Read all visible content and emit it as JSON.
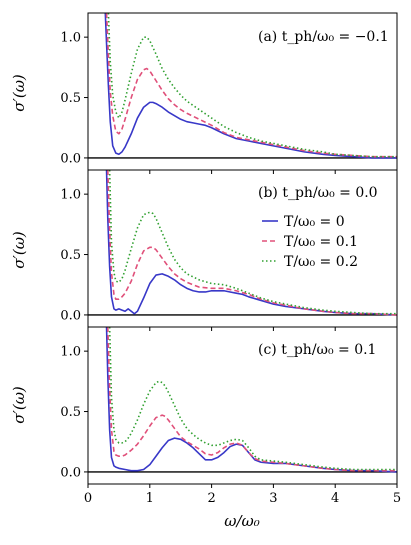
{
  "chart_data": {
    "type": "line",
    "xlabel": "ω/ω₀",
    "ylabel": "σ′(ω)",
    "xlim": [
      0,
      5
    ],
    "ylim": [
      -0.1,
      1.2
    ],
    "x_ticks": [
      0,
      1,
      2,
      3,
      4,
      5
    ],
    "y_ticks": [
      0.0,
      0.5,
      1.0
    ],
    "x_tick_labels": [
      "0",
      "1",
      "2",
      "3",
      "4",
      "5"
    ],
    "y_tick_labels": [
      "0.0",
      "0.5",
      "1.0"
    ],
    "legend": {
      "placement": "right, middle panel",
      "entries": [
        {
          "label": "T/ω₀ = 0",
          "color": "#3838c8",
          "style": "solid"
        },
        {
          "label": "T/ω₀ = 0.1",
          "color": "#e0507a",
          "style": "dashed"
        },
        {
          "label": "T/ω₀ = 0.2",
          "color": "#30a030",
          "style": "dotted"
        }
      ]
    },
    "panels": [
      {
        "label": "(a) t_ph/ω₀ = −0.1",
        "series": [
          {
            "name": "T/ω₀ = 0",
            "x": [
              0.28,
              0.3,
              0.33,
              0.36,
              0.4,
              0.45,
              0.5,
              0.55,
              0.6,
              0.7,
              0.8,
              0.9,
              1.0,
              1.05,
              1.1,
              1.2,
              1.3,
              1.4,
              1.5,
              1.6,
              1.7,
              1.8,
              1.9,
              2.0,
              2.2,
              2.4,
              2.6,
              2.8,
              3.0,
              3.2,
              3.5,
              3.8,
              4.0,
              4.3,
              4.6,
              5.0
            ],
            "y": [
              1.2,
              0.95,
              0.6,
              0.3,
              0.1,
              0.04,
              0.03,
              0.05,
              0.09,
              0.2,
              0.33,
              0.42,
              0.46,
              0.46,
              0.45,
              0.42,
              0.38,
              0.35,
              0.32,
              0.3,
              0.29,
              0.28,
              0.27,
              0.25,
              0.2,
              0.16,
              0.14,
              0.12,
              0.1,
              0.08,
              0.05,
              0.03,
              0.02,
              0.01,
              0.0,
              0.0
            ]
          },
          {
            "name": "T/ω₀ = 0.1",
            "x": [
              0.3,
              0.33,
              0.36,
              0.4,
              0.45,
              0.5,
              0.55,
              0.6,
              0.7,
              0.8,
              0.9,
              0.95,
              1.0,
              1.1,
              1.2,
              1.3,
              1.4,
              1.5,
              1.6,
              1.8,
              2.0,
              2.2,
              2.4,
              2.6,
              2.8,
              3.0,
              3.2,
              3.5,
              3.8,
              4.0,
              4.3,
              4.6,
              5.0
            ],
            "y": [
              1.2,
              0.85,
              0.55,
              0.35,
              0.22,
              0.2,
              0.24,
              0.32,
              0.5,
              0.65,
              0.73,
              0.74,
              0.72,
              0.64,
              0.56,
              0.49,
              0.44,
              0.4,
              0.37,
              0.32,
              0.27,
              0.21,
              0.17,
              0.15,
              0.13,
              0.11,
              0.09,
              0.06,
              0.04,
              0.03,
              0.02,
              0.01,
              0.01
            ]
          },
          {
            "name": "T/ω₀ = 0.2",
            "x": [
              0.33,
              0.36,
              0.4,
              0.45,
              0.5,
              0.55,
              0.6,
              0.7,
              0.8,
              0.9,
              0.95,
              1.0,
              1.1,
              1.2,
              1.3,
              1.4,
              1.5,
              1.6,
              1.8,
              2.0,
              2.2,
              2.4,
              2.6,
              2.8,
              3.0,
              3.2,
              3.5,
              3.8,
              4.0,
              4.3,
              4.6,
              5.0
            ],
            "y": [
              1.2,
              0.8,
              0.52,
              0.38,
              0.33,
              0.38,
              0.48,
              0.7,
              0.9,
              1.0,
              1.0,
              0.97,
              0.86,
              0.74,
              0.65,
              0.58,
              0.52,
              0.47,
              0.4,
              0.33,
              0.26,
              0.21,
              0.17,
              0.14,
              0.12,
              0.1,
              0.07,
              0.05,
              0.03,
              0.02,
              0.01,
              0.01
            ]
          }
        ]
      },
      {
        "label": "(b) t_ph/ω₀ = 0.0",
        "series": [
          {
            "name": "T/ω₀ = 0",
            "x": [
              0.3,
              0.32,
              0.35,
              0.38,
              0.42,
              0.45,
              0.5,
              0.55,
              0.6,
              0.65,
              0.7,
              0.75,
              0.8,
              0.9,
              1.0,
              1.1,
              1.2,
              1.3,
              1.4,
              1.5,
              1.6,
              1.7,
              1.8,
              1.9,
              2.0,
              2.1,
              2.2,
              2.3,
              2.4,
              2.5,
              2.6,
              2.8,
              3.0,
              3.2,
              3.5,
              3.8,
              4.0,
              4.3,
              4.6,
              5.0
            ],
            "y": [
              1.2,
              0.8,
              0.4,
              0.15,
              0.05,
              0.04,
              0.05,
              0.04,
              0.03,
              0.05,
              0.03,
              0.01,
              0.03,
              0.14,
              0.26,
              0.33,
              0.34,
              0.32,
              0.29,
              0.25,
              0.22,
              0.2,
              0.19,
              0.19,
              0.2,
              0.2,
              0.2,
              0.19,
              0.18,
              0.17,
              0.15,
              0.12,
              0.09,
              0.07,
              0.05,
              0.03,
              0.02,
              0.01,
              0.01,
              0.0
            ]
          },
          {
            "name": "T/ω₀ = 0.1",
            "x": [
              0.32,
              0.35,
              0.38,
              0.42,
              0.45,
              0.5,
              0.55,
              0.6,
              0.7,
              0.8,
              0.9,
              1.0,
              1.05,
              1.1,
              1.2,
              1.3,
              1.4,
              1.5,
              1.6,
              1.8,
              2.0,
              2.2,
              2.4,
              2.6,
              2.8,
              3.0,
              3.2,
              3.5,
              3.8,
              4.0,
              4.3,
              4.6,
              5.0
            ],
            "y": [
              1.2,
              0.7,
              0.35,
              0.17,
              0.13,
              0.13,
              0.15,
              0.18,
              0.28,
              0.42,
              0.53,
              0.56,
              0.56,
              0.54,
              0.47,
              0.4,
              0.34,
              0.3,
              0.27,
              0.23,
              0.22,
              0.22,
              0.2,
              0.17,
              0.13,
              0.1,
              0.08,
              0.05,
              0.03,
              0.02,
              0.01,
              0.01,
              0.0
            ]
          },
          {
            "name": "T/ω₀ = 0.2",
            "x": [
              0.35,
              0.38,
              0.42,
              0.45,
              0.5,
              0.55,
              0.6,
              0.7,
              0.8,
              0.9,
              1.0,
              1.05,
              1.1,
              1.2,
              1.3,
              1.4,
              1.5,
              1.6,
              1.8,
              2.0,
              2.2,
              2.4,
              2.6,
              2.8,
              3.0,
              3.2,
              3.5,
              3.8,
              4.0,
              4.3,
              4.6,
              5.0
            ],
            "y": [
              1.2,
              0.6,
              0.35,
              0.28,
              0.27,
              0.3,
              0.37,
              0.55,
              0.72,
              0.83,
              0.85,
              0.84,
              0.8,
              0.68,
              0.56,
              0.46,
              0.39,
              0.34,
              0.29,
              0.26,
              0.25,
              0.22,
              0.18,
              0.14,
              0.11,
              0.09,
              0.06,
              0.04,
              0.03,
              0.02,
              0.01,
              0.01
            ]
          }
        ]
      },
      {
        "label": "(c) t_ph/ω₀ = 0.1",
        "series": [
          {
            "name": "T/ω₀ = 0",
            "x": [
              0.3,
              0.32,
              0.35,
              0.38,
              0.42,
              0.45,
              0.5,
              0.6,
              0.7,
              0.8,
              0.9,
              1.0,
              1.1,
              1.2,
              1.3,
              1.4,
              1.5,
              1.6,
              1.7,
              1.8,
              1.9,
              2.0,
              2.1,
              2.2,
              2.3,
              2.4,
              2.5,
              2.6,
              2.7,
              2.8,
              3.0,
              3.2,
              3.5,
              3.8,
              4.0,
              4.3,
              4.6,
              5.0
            ],
            "y": [
              1.2,
              0.8,
              0.35,
              0.12,
              0.05,
              0.04,
              0.03,
              0.02,
              0.01,
              0.01,
              0.02,
              0.06,
              0.13,
              0.2,
              0.26,
              0.28,
              0.27,
              0.24,
              0.2,
              0.15,
              0.1,
              0.1,
              0.12,
              0.16,
              0.21,
              0.23,
              0.22,
              0.16,
              0.1,
              0.08,
              0.07,
              0.07,
              0.05,
              0.03,
              0.02,
              0.01,
              0.01,
              0.0
            ]
          },
          {
            "name": "T/ω₀ = 0.1",
            "x": [
              0.32,
              0.35,
              0.38,
              0.42,
              0.45,
              0.5,
              0.55,
              0.6,
              0.7,
              0.8,
              0.9,
              1.0,
              1.1,
              1.2,
              1.25,
              1.3,
              1.4,
              1.5,
              1.6,
              1.7,
              1.8,
              1.9,
              2.0,
              2.1,
              2.2,
              2.3,
              2.4,
              2.5,
              2.6,
              2.7,
              2.8,
              3.0,
              3.2,
              3.5,
              3.8,
              4.0,
              4.3,
              4.6,
              5.0
            ],
            "y": [
              1.2,
              0.7,
              0.35,
              0.17,
              0.14,
              0.13,
              0.13,
              0.14,
              0.18,
              0.23,
              0.3,
              0.38,
              0.45,
              0.47,
              0.46,
              0.43,
              0.36,
              0.29,
              0.25,
              0.22,
              0.19,
              0.15,
              0.14,
              0.16,
              0.2,
              0.23,
              0.24,
              0.22,
              0.16,
              0.11,
              0.09,
              0.08,
              0.07,
              0.05,
              0.03,
              0.02,
              0.01,
              0.01,
              0.01
            ]
          },
          {
            "name": "T/ω₀ = 0.2",
            "x": [
              0.35,
              0.38,
              0.42,
              0.45,
              0.5,
              0.55,
              0.6,
              0.65,
              0.7,
              0.8,
              0.9,
              1.0,
              1.1,
              1.15,
              1.2,
              1.25,
              1.3,
              1.4,
              1.5,
              1.6,
              1.7,
              1.8,
              1.9,
              2.0,
              2.1,
              2.2,
              2.3,
              2.4,
              2.5,
              2.6,
              2.7,
              2.8,
              3.0,
              3.2,
              3.5,
              3.8,
              4.0,
              4.3,
              4.6,
              5.0
            ],
            "y": [
              1.2,
              0.62,
              0.35,
              0.27,
              0.24,
              0.24,
              0.25,
              0.28,
              0.32,
              0.43,
              0.56,
              0.67,
              0.74,
              0.75,
              0.74,
              0.71,
              0.66,
              0.55,
              0.44,
              0.36,
              0.31,
              0.27,
              0.24,
              0.22,
              0.22,
              0.24,
              0.26,
              0.27,
              0.26,
              0.2,
              0.13,
              0.1,
              0.09,
              0.08,
              0.06,
              0.04,
              0.03,
              0.02,
              0.02,
              0.02
            ]
          }
        ]
      }
    ]
  }
}
